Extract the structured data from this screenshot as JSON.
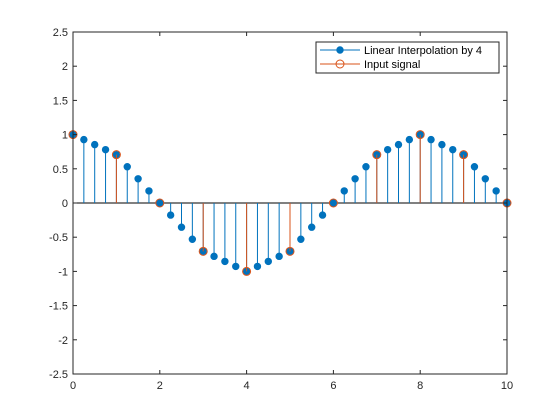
{
  "chart_data": {
    "type": "stem",
    "xlim": [
      0,
      10
    ],
    "ylim": [
      -2.5,
      2.5
    ],
    "xticks": [
      0,
      2,
      4,
      6,
      8,
      10
    ],
    "yticks": [
      -2.5,
      -2,
      -1.5,
      -1,
      -0.5,
      0,
      0.5,
      1,
      1.5,
      2,
      2.5
    ],
    "xtick_labels": [
      "0",
      "2",
      "4",
      "6",
      "8",
      "10"
    ],
    "ytick_labels": [
      "-2.5",
      "-2",
      "-1.5",
      "-1",
      "-0.5",
      "0",
      "0.5",
      "1",
      "1.5",
      "2",
      "2.5"
    ],
    "grid": false,
    "legend_position": "top-right",
    "series": [
      {
        "name": "Linear Interpolation by 4",
        "color": "#0072BD",
        "marker": "filled-circle",
        "x": [
          0,
          0.25,
          0.5,
          0.75,
          1,
          1.25,
          1.5,
          1.75,
          2,
          2.25,
          2.5,
          2.75,
          3,
          3.25,
          3.5,
          3.75,
          4,
          4.25,
          4.5,
          4.75,
          5,
          5.25,
          5.5,
          5.75,
          6,
          6.25,
          6.5,
          6.75,
          7,
          7.25,
          7.5,
          7.75,
          8,
          8.25,
          8.5,
          8.75,
          9,
          9.25,
          9.5,
          9.75,
          10
        ],
        "y": [
          1,
          0.927,
          0.854,
          0.78,
          0.707,
          0.53,
          0.354,
          0.177,
          0,
          -0.177,
          -0.354,
          -0.53,
          -0.707,
          -0.78,
          -0.854,
          -0.927,
          -1,
          -0.927,
          -0.854,
          -0.78,
          -0.707,
          -0.53,
          -0.354,
          -0.177,
          0,
          0.177,
          0.354,
          0.53,
          0.707,
          0.78,
          0.854,
          0.927,
          1,
          0.927,
          0.854,
          0.78,
          0.707,
          0.53,
          0.354,
          0.177,
          0
        ]
      },
      {
        "name": "Input signal",
        "color": "#D95319",
        "marker": "open-circle",
        "x": [
          0,
          1,
          2,
          3,
          4,
          5,
          6,
          7,
          8,
          9,
          10
        ],
        "y": [
          1,
          0.707,
          0,
          -0.707,
          -1,
          -0.707,
          0,
          0.707,
          1,
          0.707,
          0
        ]
      }
    ]
  }
}
